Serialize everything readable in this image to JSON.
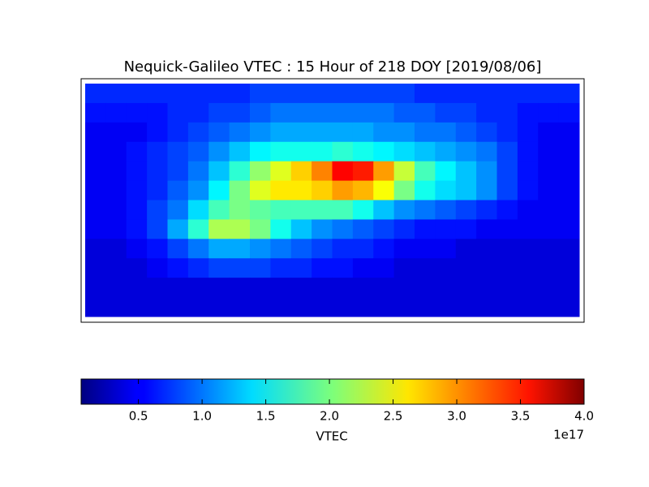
{
  "chart_data": {
    "type": "heatmap",
    "title": "Nequick-Galileo VTEC : 15 Hour of 218 DOY [2019/08/06]",
    "colormap": "jet",
    "values": [
      [
        0.7,
        0.7,
        0.7,
        0.7,
        0.7,
        0.7,
        0.7,
        0.7,
        0.8,
        0.8,
        0.8,
        0.8,
        0.8,
        0.8,
        0.8,
        0.8,
        0.7,
        0.7,
        0.7,
        0.7,
        0.7,
        0.7,
        0.7,
        0.7
      ],
      [
        0.6,
        0.6,
        0.6,
        0.6,
        0.7,
        0.7,
        0.8,
        0.8,
        0.9,
        1.0,
        1.0,
        1.0,
        1.0,
        1.0,
        1.0,
        0.9,
        0.9,
        0.8,
        0.8,
        0.7,
        0.7,
        0.6,
        0.6,
        0.6
      ],
      [
        0.5,
        0.5,
        0.5,
        0.6,
        0.7,
        0.8,
        0.9,
        1.0,
        1.1,
        1.2,
        1.2,
        1.2,
        1.2,
        1.2,
        1.1,
        1.1,
        1.0,
        1.0,
        0.9,
        0.8,
        0.7,
        0.6,
        0.5,
        0.5
      ],
      [
        0.5,
        0.5,
        0.6,
        0.7,
        0.8,
        0.9,
        1.1,
        1.3,
        1.5,
        1.6,
        1.6,
        1.6,
        1.7,
        1.6,
        1.5,
        1.4,
        1.3,
        1.2,
        1.1,
        1.0,
        0.8,
        0.6,
        0.5,
        0.5
      ],
      [
        0.5,
        0.5,
        0.6,
        0.7,
        0.8,
        1.0,
        1.3,
        1.7,
        2.1,
        2.4,
        2.7,
        3.0,
        3.5,
        3.4,
        2.9,
        2.3,
        1.8,
        1.5,
        1.3,
        1.1,
        0.8,
        0.6,
        0.5,
        0.5
      ],
      [
        0.5,
        0.5,
        0.6,
        0.7,
        0.9,
        1.1,
        1.5,
        2.0,
        2.4,
        2.6,
        2.6,
        2.7,
        2.9,
        2.8,
        2.5,
        2.0,
        1.6,
        1.4,
        1.3,
        1.1,
        0.8,
        0.6,
        0.5,
        0.5
      ],
      [
        0.5,
        0.5,
        0.6,
        0.8,
        1.0,
        1.4,
        1.8,
        2.0,
        1.9,
        1.8,
        1.8,
        1.8,
        1.8,
        1.6,
        1.3,
        1.1,
        1.0,
        0.9,
        0.8,
        0.7,
        0.6,
        0.5,
        0.5,
        0.5
      ],
      [
        0.5,
        0.5,
        0.6,
        0.8,
        1.2,
        1.7,
        2.2,
        2.2,
        2.0,
        1.6,
        1.3,
        1.1,
        1.0,
        0.9,
        0.8,
        0.7,
        0.6,
        0.6,
        0.6,
        0.5,
        0.5,
        0.5,
        0.5,
        0.5
      ],
      [
        0.4,
        0.4,
        0.5,
        0.6,
        0.8,
        1.0,
        1.2,
        1.2,
        1.1,
        1.0,
        0.9,
        0.8,
        0.7,
        0.7,
        0.6,
        0.5,
        0.5,
        0.5,
        0.4,
        0.4,
        0.4,
        0.4,
        0.4,
        0.4
      ],
      [
        0.4,
        0.4,
        0.4,
        0.5,
        0.6,
        0.7,
        0.8,
        0.8,
        0.8,
        0.7,
        0.7,
        0.6,
        0.6,
        0.5,
        0.5,
        0.4,
        0.4,
        0.4,
        0.4,
        0.4,
        0.4,
        0.4,
        0.4,
        0.4
      ],
      [
        0.4,
        0.4,
        0.4,
        0.4,
        0.4,
        0.4,
        0.4,
        0.4,
        0.4,
        0.4,
        0.4,
        0.4,
        0.4,
        0.4,
        0.4,
        0.4,
        0.4,
        0.4,
        0.4,
        0.4,
        0.4,
        0.4,
        0.4,
        0.4
      ],
      [
        0.4,
        0.4,
        0.4,
        0.4,
        0.4,
        0.4,
        0.4,
        0.4,
        0.4,
        0.4,
        0.4,
        0.4,
        0.4,
        0.4,
        0.4,
        0.4,
        0.4,
        0.4,
        0.4,
        0.4,
        0.4,
        0.4,
        0.4,
        0.4
      ]
    ],
    "colorbar": {
      "label": "VTEC",
      "offset_label": "1e17",
      "lim": [
        0.05,
        4.0
      ],
      "ticks": [
        0.5,
        {
          "value": 1,
          "label": "1.0"
        },
        1.5,
        {
          "value": 2,
          "label": "2.0"
        },
        2.5,
        {
          "value": 3,
          "label": "3.0"
        },
        3.5,
        {
          "value": 4,
          "label": "4.0"
        }
      ]
    }
  }
}
